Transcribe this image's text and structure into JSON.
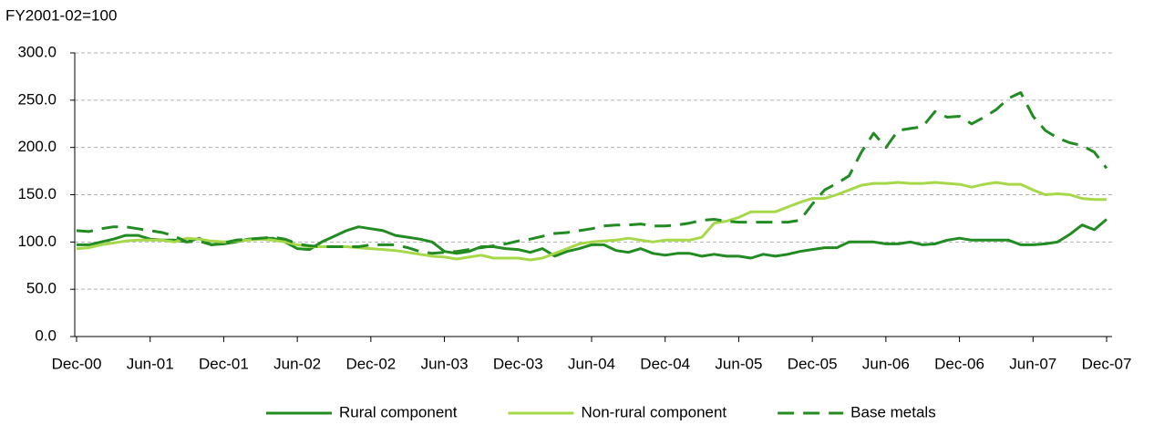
{
  "chart_data": {
    "type": "line",
    "y_label": "FY2001-02=100",
    "categories": [
      "Dec-00",
      null,
      null,
      null,
      null,
      null,
      "Jun-01",
      null,
      null,
      null,
      null,
      null,
      "Dec-01",
      null,
      null,
      null,
      null,
      null,
      "Jun-02",
      null,
      null,
      null,
      null,
      null,
      "Dec-02",
      null,
      null,
      null,
      null,
      null,
      "Jun-03",
      null,
      null,
      null,
      null,
      null,
      "Dec-03",
      null,
      null,
      null,
      null,
      null,
      "Jun-04",
      null,
      null,
      null,
      null,
      null,
      "Dec-04",
      null,
      null,
      null,
      null,
      null,
      "Jun-05",
      null,
      null,
      null,
      null,
      null,
      "Dec-05",
      null,
      null,
      null,
      null,
      null,
      "Jun-06",
      null,
      null,
      null,
      null,
      null,
      "Dec-06",
      null,
      null,
      null,
      null,
      null,
      "Jun-07",
      null,
      null,
      null,
      null,
      null,
      "Dec-07"
    ],
    "series": [
      {
        "name": "Rural component",
        "color": "#228b22",
        "dashed": false,
        "values": [
          97,
          97,
          100,
          103,
          107,
          107,
          103,
          102,
          102,
          100,
          104,
          97,
          98,
          100,
          103,
          104,
          104,
          100,
          93,
          92,
          100,
          106,
          112,
          116,
          114,
          112,
          107,
          105,
          103,
          100,
          90,
          88,
          90,
          95,
          95,
          93,
          92,
          89,
          93,
          85,
          90,
          93,
          97,
          97,
          91,
          89,
          93,
          88,
          86,
          88,
          88,
          85,
          87,
          85,
          85,
          83,
          87,
          85,
          87,
          90,
          92,
          94,
          94,
          100,
          100,
          100,
          98,
          98,
          100,
          97,
          98,
          102,
          104,
          102,
          102,
          102,
          102,
          97,
          97,
          98,
          100,
          108,
          118,
          113,
          124
        ]
      },
      {
        "name": "Non-rural component",
        "color": "#a6d84a",
        "dashed": false,
        "values": [
          93,
          94,
          97,
          99,
          101,
          102,
          102,
          102,
          100,
          104,
          103,
          101,
          100,
          101,
          102,
          103,
          102,
          100,
          97,
          95,
          95,
          95,
          95,
          94,
          93,
          92,
          91,
          89,
          87,
          85,
          84,
          82,
          84,
          86,
          83,
          83,
          83,
          81,
          83,
          88,
          93,
          98,
          100,
          101,
          102,
          104,
          102,
          100,
          102,
          102,
          102,
          105,
          120,
          122,
          126,
          132,
          132,
          132,
          137,
          142,
          146,
          146,
          150,
          155,
          160,
          162,
          162,
          163,
          162,
          162,
          163,
          162,
          161,
          158,
          161,
          163,
          161,
          161,
          155,
          150,
          151,
          150,
          146,
          145,
          145
        ]
      },
      {
        "name": "Base metals",
        "color": "#228b22",
        "dashed": true,
        "values": [
          112,
          111,
          114,
          116,
          116,
          114,
          112,
          110,
          106,
          100,
          101,
          97,
          99,
          102,
          103,
          104,
          105,
          103,
          98,
          96,
          95,
          95,
          95,
          95,
          97,
          97,
          97,
          94,
          90,
          88,
          89,
          90,
          92,
          94,
          96,
          98,
          101,
          103,
          106,
          109,
          110,
          112,
          114,
          117,
          118,
          118,
          119,
          117,
          117,
          118,
          120,
          123,
          124,
          122,
          121,
          121,
          121,
          121,
          121,
          123,
          140,
          155,
          162,
          170,
          195,
          215,
          200,
          218,
          220,
          222,
          238,
          232,
          233,
          225,
          232,
          240,
          252,
          258,
          233,
          218,
          210,
          205,
          202,
          195,
          178
        ]
      }
    ],
    "ylim": [
      0,
      300
    ],
    "yticks": [
      {
        "value": 0,
        "label": "0.0"
      },
      {
        "value": 50,
        "label": "50.0"
      },
      {
        "value": 100,
        "label": "100.0"
      },
      {
        "value": 150,
        "label": "150.0"
      },
      {
        "value": 200,
        "label": "200.0"
      },
      {
        "value": 250,
        "label": "250.0"
      },
      {
        "value": 300,
        "label": "300.0"
      }
    ],
    "grid": true,
    "legend": "bottom"
  }
}
